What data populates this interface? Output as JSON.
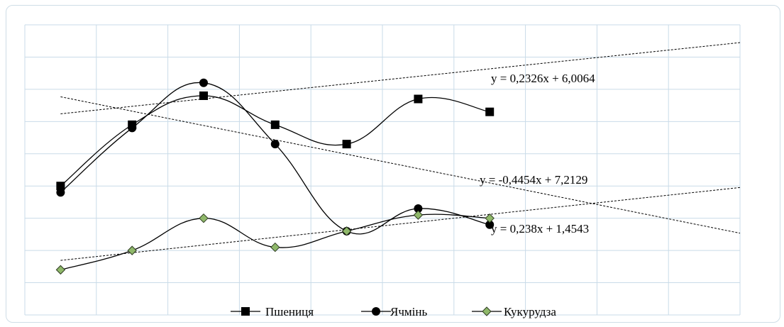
{
  "chart_data": {
    "type": "line",
    "x": [
      1,
      2,
      3,
      4,
      5,
      6,
      7
    ],
    "ylim": [
      0,
      9
    ],
    "xlim": [
      0.5,
      10.5
    ],
    "grid": true,
    "legend_position": "bottom",
    "series": [
      {
        "name": "Пшениця",
        "values": [
          4.0,
          5.9,
          6.8,
          5.9,
          5.3,
          6.7,
          6.3
        ],
        "marker": "square",
        "color": "#000000"
      },
      {
        "name": "Ячмінь",
        "values": [
          3.8,
          5.8,
          7.2,
          5.3,
          2.6,
          3.3,
          2.8
        ],
        "marker": "circle",
        "color": "#000000"
      },
      {
        "name": "Кукурудза",
        "values": [
          1.4,
          2.0,
          3.0,
          2.1,
          2.6,
          3.1,
          3.0
        ],
        "marker": "diamond",
        "color": "#8fb86a"
      }
    ],
    "trendlines": [
      {
        "label": "y = 0,2326x + 6,0064",
        "slope": 0.2326,
        "intercept": 6.0064
      },
      {
        "label": "y = -0,4454x + 7,2129",
        "slope": -0.4454,
        "intercept": 7.2129
      },
      {
        "label": "y = 0,238x + 1,4543",
        "slope": 0.238,
        "intercept": 1.4543
      }
    ]
  }
}
